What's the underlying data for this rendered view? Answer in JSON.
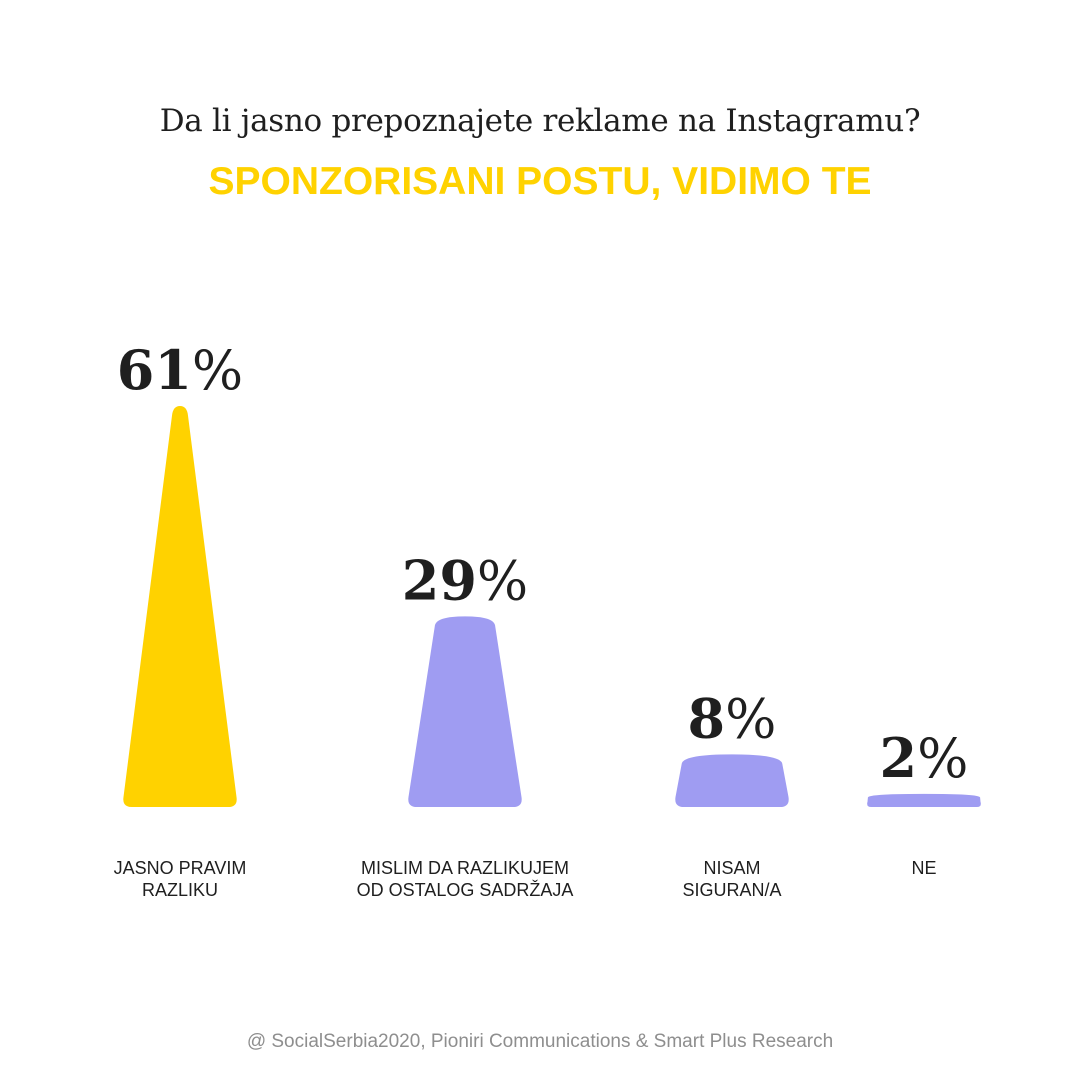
{
  "question": "Da li jasno prepoznajete reklame na Instagramu?",
  "headline": "SPONZORISANI POSTU, VIDIMO TE",
  "footer": "@ SocialSerbia2020, Pioniri Communications & Smart Plus Research",
  "colors": {
    "highlight": "#ffd200",
    "bar_default": "#9f9cf2",
    "text": "#1f1f1f",
    "footer": "#8e8e8e"
  },
  "chart_data": {
    "type": "bar",
    "title": "Da li jasno prepoznajete reklame na Instagramu?",
    "categories": [
      [
        "JASNO PRAVIM",
        "RAZLIKU"
      ],
      [
        "MISLIM DA RAZLIKUJEM",
        "OD OSTALOG SADRŽAJA"
      ],
      [
        "NISAM",
        "SIGURAN/A"
      ],
      [
        "NE"
      ]
    ],
    "values": [
      61,
      29,
      8,
      2
    ],
    "value_suffix": "%",
    "highlight_index": 0,
    "ylim": [
      0,
      61
    ],
    "grid": false,
    "legend": "none"
  }
}
